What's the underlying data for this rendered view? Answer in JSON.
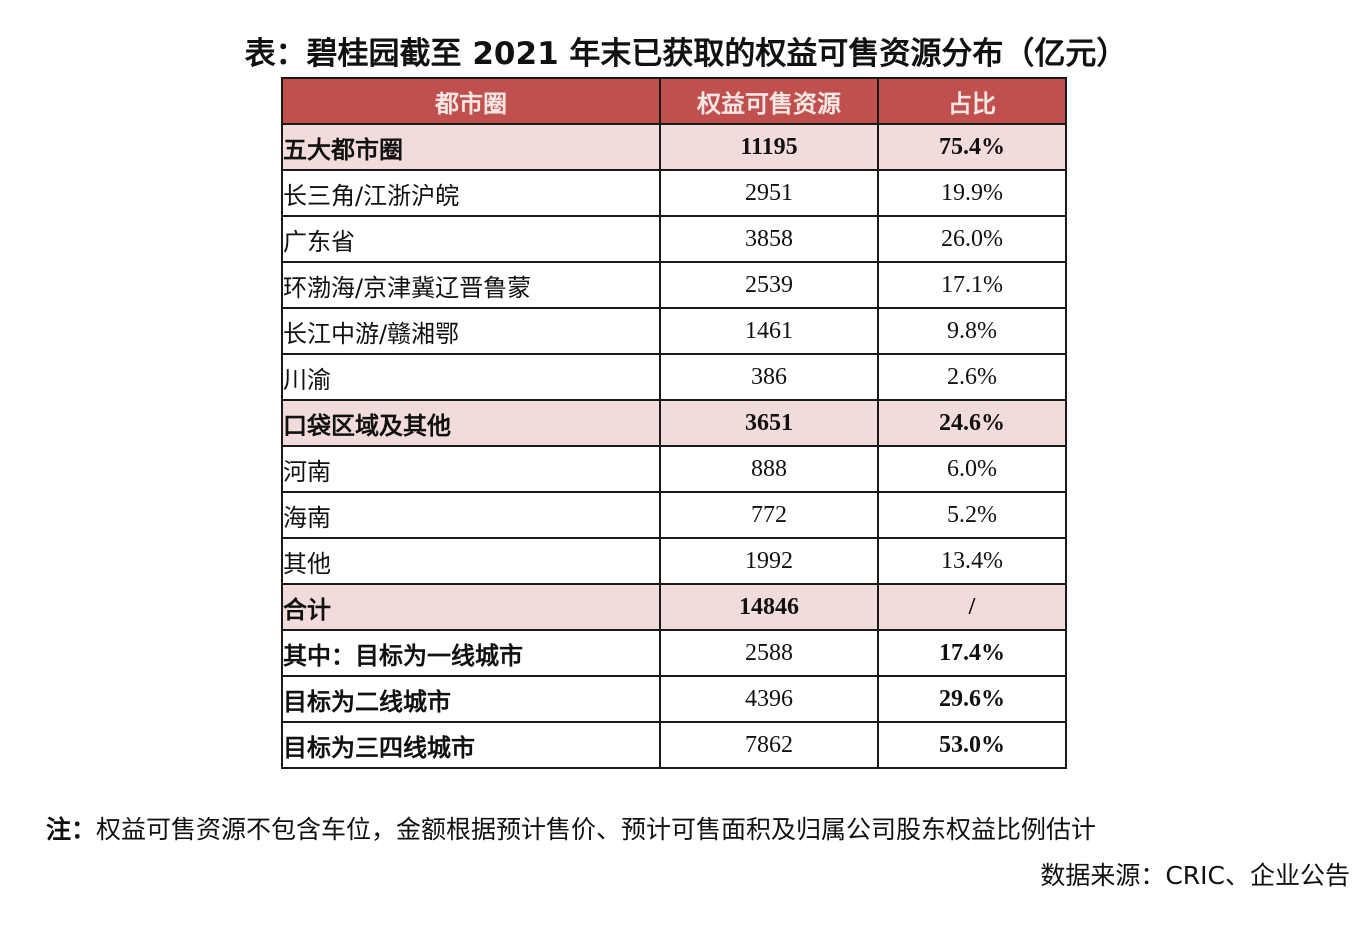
{
  "title": "表：碧桂园截至 2021 年末已获取的权益可售资源分布（亿元）",
  "table": {
    "headers": [
      "都市圈",
      "权益可售资源",
      "占比"
    ],
    "rows": [
      {
        "label": "五大都市圈",
        "value": "11195",
        "share": "75.4%",
        "type": "highlight"
      },
      {
        "label": "长三角/江浙沪皖",
        "value": "2951",
        "share": "19.9%",
        "type": "normal"
      },
      {
        "label": "广东省",
        "value": "3858",
        "share": "26.0%",
        "type": "normal"
      },
      {
        "label": "环渤海/京津冀辽晋鲁蒙",
        "value": "2539",
        "share": "17.1%",
        "type": "normal"
      },
      {
        "label": "长江中游/赣湘鄂",
        "value": "1461",
        "share": "9.8%",
        "type": "normal"
      },
      {
        "label": "川渝",
        "value": "386",
        "share": "2.6%",
        "type": "normal"
      },
      {
        "label": "口袋区域及其他",
        "value": "3651",
        "share": "24.6%",
        "type": "highlight"
      },
      {
        "label": "河南",
        "value": "888",
        "share": "6.0%",
        "type": "normal"
      },
      {
        "label": "海南",
        "value": "772",
        "share": "5.2%",
        "type": "normal"
      },
      {
        "label": "其他",
        "value": "1992",
        "share": "13.4%",
        "type": "normal"
      },
      {
        "label": "合计",
        "value": "14846",
        "share": "/",
        "type": "highlight"
      },
      {
        "label": "其中：目标为一线城市",
        "value": "2588",
        "share": "17.4%",
        "type": "sub-first"
      },
      {
        "label": "目标为二线城市",
        "value": "4396",
        "share": "29.6%",
        "type": "sub"
      },
      {
        "label": "目标为三四线城市",
        "value": "7862",
        "share": "53.0%",
        "type": "sub"
      }
    ]
  },
  "note": {
    "prefix": "注：",
    "text": "权益可售资源不包含车位，金额根据预计售价、预计可售面积及归属公司股东权益比例估计"
  },
  "source": "数据来源：CRIC、企业公告",
  "colors": {
    "header_bg": "#C0504D",
    "highlight_bg": "#F2DCDB"
  }
}
